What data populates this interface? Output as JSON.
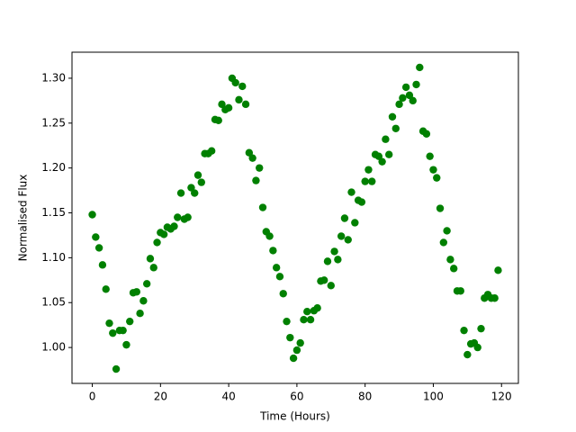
{
  "chart_data": {
    "type": "scatter",
    "xlabel": "Time (Hours)",
    "ylabel": "Normalised Flux",
    "color": "#008000",
    "x": [
      0,
      1,
      2,
      3,
      4,
      5,
      6,
      7,
      8,
      9,
      10,
      11,
      12,
      13,
      14,
      15,
      16,
      17,
      18,
      19,
      20,
      21,
      22,
      23,
      24,
      25,
      26,
      27,
      28,
      29,
      30,
      31,
      32,
      33,
      34,
      35,
      36,
      37,
      38,
      39,
      40,
      41,
      42,
      43,
      44,
      45,
      46,
      47,
      48,
      49,
      50,
      51,
      52,
      53,
      54,
      55,
      56,
      57,
      58,
      59,
      60,
      61,
      62,
      63,
      64,
      65,
      66,
      67,
      68,
      69,
      70,
      71,
      72,
      73,
      74,
      75,
      76,
      77,
      78,
      79,
      80,
      81,
      82,
      83,
      84,
      85,
      86,
      87,
      88,
      89,
      90,
      91,
      92,
      93,
      94,
      95,
      96,
      97,
      98,
      99,
      100,
      101,
      102,
      103,
      104,
      105,
      106,
      107,
      108,
      109,
      110,
      111,
      112,
      113,
      114,
      115,
      116,
      117,
      118,
      119
    ],
    "y": [
      1.148,
      1.123,
      1.111,
      1.092,
      1.065,
      1.027,
      1.016,
      0.976,
      1.019,
      1.019,
      1.003,
      1.029,
      1.061,
      1.062,
      1.038,
      1.052,
      1.071,
      1.099,
      1.089,
      1.117,
      1.128,
      1.126,
      1.134,
      1.132,
      1.135,
      1.145,
      1.172,
      1.143,
      1.145,
      1.178,
      1.172,
      1.192,
      1.184,
      1.216,
      1.216,
      1.219,
      1.254,
      1.253,
      1.271,
      1.265,
      1.267,
      1.3,
      1.295,
      1.276,
      1.291,
      1.271,
      1.217,
      1.211,
      1.186,
      1.2,
      1.156,
      1.129,
      1.124,
      1.108,
      1.089,
      1.079,
      1.06,
      1.029,
      1.011,
      0.988,
      0.997,
      1.005,
      1.031,
      1.04,
      1.031,
      1.041,
      1.044,
      1.074,
      1.075,
      1.096,
      1.069,
      1.107,
      1.098,
      1.124,
      1.144,
      1.12,
      1.173,
      1.139,
      1.164,
      1.162,
      1.185,
      1.198,
      1.185,
      1.215,
      1.213,
      1.207,
      1.232,
      1.215,
      1.257,
      1.244,
      1.271,
      1.278,
      1.29,
      1.281,
      1.275,
      1.293,
      1.312,
      1.241,
      1.238,
      1.213,
      1.198,
      1.189,
      1.155,
      1.117,
      1.13,
      1.098,
      1.088,
      1.063,
      1.063,
      1.019,
      0.992,
      1.004,
      1.005,
      1.0,
      1.021,
      1.055,
      1.059,
      1.055,
      1.055,
      1.086
    ],
    "xlim": [
      -5.95,
      124.95
    ],
    "xticks": [
      0,
      20,
      40,
      60,
      80,
      100,
      120
    ],
    "ylim": [
      0.96,
      1.329
    ],
    "yticks": [
      {
        "value": 1.0,
        "label": "1.00"
      },
      {
        "value": 1.05,
        "label": "1.05"
      },
      {
        "value": 1.1,
        "label": "1.10"
      },
      {
        "value": 1.15,
        "label": "1.15"
      },
      {
        "value": 1.2,
        "label": "1.20"
      },
      {
        "value": 1.25,
        "label": "1.25"
      },
      {
        "value": 1.3,
        "label": "1.30"
      }
    ]
  }
}
